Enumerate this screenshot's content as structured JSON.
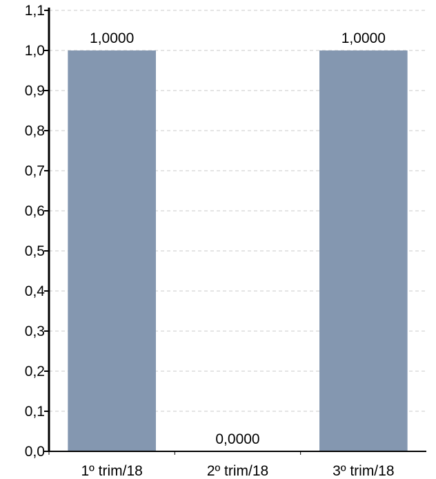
{
  "chart_data": {
    "type": "bar",
    "title": "",
    "xlabel": "",
    "ylabel": "",
    "categories": [
      "1º trim/18",
      "2º trim/18",
      "3º trim/18"
    ],
    "values": [
      1.0,
      0.0,
      1.0
    ],
    "data_labels": [
      "1,0000",
      "0,0000",
      "1,0000"
    ],
    "ylim": [
      0,
      1.1
    ],
    "yticks": [
      0,
      0.1,
      0.2,
      0.3,
      0.4,
      0.5,
      0.6,
      0.7,
      0.8,
      0.9,
      1.0,
      1.1
    ],
    "ytick_labels": [
      "0,0",
      "0,1",
      "0,2",
      "0,3",
      "0,4",
      "0,5",
      "0,6",
      "0,7",
      "0,8",
      "0,9",
      "1,0",
      "1,1"
    ],
    "grid": true,
    "legend": "none",
    "bar_color": "#8497b0",
    "grid_color": "#c8c8c8",
    "axis_color": "#000000"
  }
}
